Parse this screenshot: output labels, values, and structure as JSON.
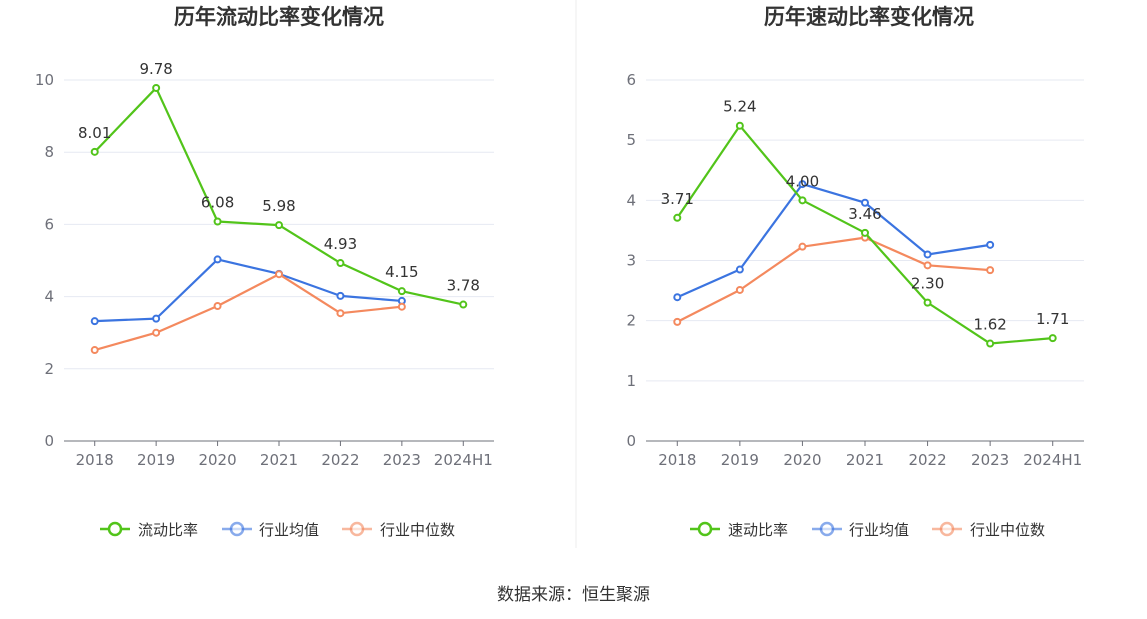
{
  "source": "数据来源：恒生聚源",
  "chart_data": [
    {
      "type": "line",
      "title": "历年流动比率变化情况",
      "categories": [
        "2018",
        "2019",
        "2020",
        "2021",
        "2022",
        "2023",
        "2024H1"
      ],
      "ylim": [
        0,
        10
      ],
      "yticks": [
        0,
        2,
        4,
        6,
        8,
        10
      ],
      "grid": true,
      "legend_position": "bottom-center",
      "series": [
        {
          "name": "流动比率",
          "color": "#52c41a",
          "values": [
            8.01,
            9.78,
            6.08,
            5.98,
            4.93,
            4.15,
            3.78
          ],
          "labels": [
            "8.01",
            "9.78",
            "6.08",
            "5.98",
            "4.93",
            "4.15",
            "3.78"
          ]
        },
        {
          "name": "行业均值",
          "color": "#3b74e0",
          "values": [
            3.32,
            3.39,
            5.03,
            4.63,
            4.02,
            3.88,
            null
          ]
        },
        {
          "name": "行业中位数",
          "color": "#f4895e",
          "values": [
            2.52,
            3.0,
            3.74,
            4.62,
            3.54,
            3.72,
            null
          ]
        }
      ]
    },
    {
      "type": "line",
      "title": "历年速动比率变化情况",
      "categories": [
        "2018",
        "2019",
        "2020",
        "2021",
        "2022",
        "2023",
        "2024H1"
      ],
      "ylim": [
        0,
        6
      ],
      "yticks": [
        0,
        1,
        2,
        3,
        4,
        5,
        6
      ],
      "grid": true,
      "legend_position": "bottom-center",
      "series": [
        {
          "name": "速动比率",
          "color": "#52c41a",
          "values": [
            3.71,
            5.24,
            4.0,
            3.46,
            2.3,
            1.62,
            1.71
          ],
          "labels": [
            "3.71",
            "5.24",
            "4.00",
            "3.46",
            "2.30",
            "1.62",
            "1.71"
          ]
        },
        {
          "name": "行业均值",
          "color": "#3b74e0",
          "values": [
            2.39,
            2.85,
            4.27,
            3.96,
            3.1,
            3.26,
            null
          ]
        },
        {
          "name": "行业中位数",
          "color": "#f4895e",
          "values": [
            1.98,
            2.51,
            3.23,
            3.38,
            2.92,
            2.84,
            null
          ]
        }
      ]
    }
  ]
}
